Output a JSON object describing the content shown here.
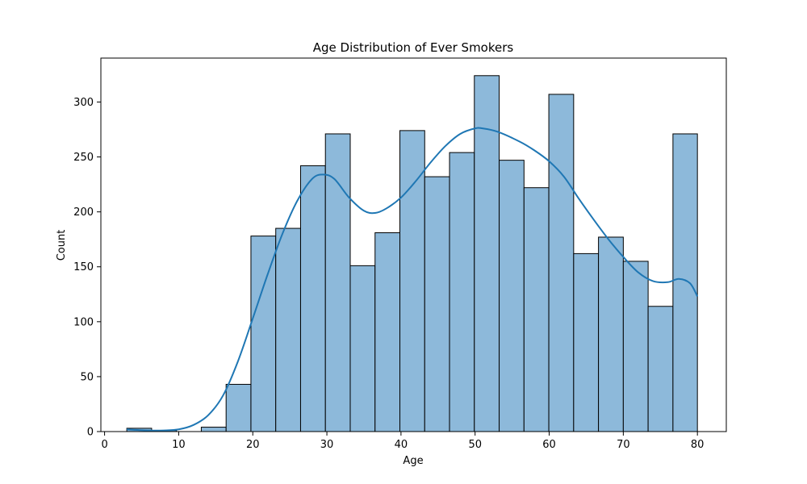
{
  "chart_data": {
    "type": "bar",
    "subtype": "histogram",
    "title": "Age Distribution of Ever Smokers",
    "xlabel": "Age",
    "ylabel": "Count",
    "xlim": [
      -0.5,
      83.9
    ],
    "ylim": [
      0,
      340
    ],
    "xticks": [
      0,
      10,
      20,
      30,
      40,
      50,
      60,
      70,
      80
    ],
    "yticks": [
      0,
      50,
      100,
      150,
      200,
      250,
      300
    ],
    "grid": false,
    "bar_color": "#8db9da",
    "edge_color": "#000000",
    "kde_color": "#1f77b4",
    "bins": [
      {
        "start": 3.0,
        "end": 6.35,
        "count": 3
      },
      {
        "start": 6.35,
        "end": 9.7,
        "count": 1
      },
      {
        "start": 9.7,
        "end": 13.05,
        "count": 0
      },
      {
        "start": 13.05,
        "end": 16.4,
        "count": 4
      },
      {
        "start": 16.4,
        "end": 19.75,
        "count": 43
      },
      {
        "start": 19.75,
        "end": 23.1,
        "count": 178
      },
      {
        "start": 23.1,
        "end": 26.45,
        "count": 185
      },
      {
        "start": 26.45,
        "end": 29.8,
        "count": 242
      },
      {
        "start": 29.8,
        "end": 33.15,
        "count": 271
      },
      {
        "start": 33.15,
        "end": 36.5,
        "count": 151
      },
      {
        "start": 36.5,
        "end": 39.85,
        "count": 181
      },
      {
        "start": 39.85,
        "end": 43.2,
        "count": 274
      },
      {
        "start": 43.2,
        "end": 46.55,
        "count": 232
      },
      {
        "start": 46.55,
        "end": 49.9,
        "count": 254
      },
      {
        "start": 49.9,
        "end": 53.25,
        "count": 324
      },
      {
        "start": 53.25,
        "end": 56.6,
        "count": 247
      },
      {
        "start": 56.6,
        "end": 59.95,
        "count": 222
      },
      {
        "start": 59.95,
        "end": 63.3,
        "count": 307
      },
      {
        "start": 63.3,
        "end": 66.65,
        "count": 162
      },
      {
        "start": 66.65,
        "end": 70.0,
        "count": 177
      },
      {
        "start": 70.0,
        "end": 73.35,
        "count": 155
      },
      {
        "start": 73.35,
        "end": 76.7,
        "count": 114
      },
      {
        "start": 76.7,
        "end": 80.0,
        "count": 271
      }
    ],
    "kde": {
      "x": [
        3,
        6,
        8,
        10,
        12,
        14,
        16,
        18,
        20,
        22,
        24,
        26,
        28,
        29.5,
        31,
        33,
        35,
        36.5,
        38,
        40,
        42,
        44,
        46,
        48,
        50,
        51,
        53,
        56,
        58,
        60,
        62,
        64,
        66,
        68,
        70,
        72,
        74,
        76,
        77.5,
        79,
        80
      ],
      "y": [
        2,
        1,
        1,
        2,
        6,
        15,
        33,
        64,
        103,
        143,
        180,
        210,
        230,
        234,
        230,
        213,
        201,
        199,
        203,
        213,
        228,
        245,
        260,
        271,
        276,
        276,
        273,
        264,
        256,
        246,
        232,
        212,
        193,
        175,
        159,
        145,
        137,
        136,
        139,
        135,
        123
      ]
    }
  }
}
